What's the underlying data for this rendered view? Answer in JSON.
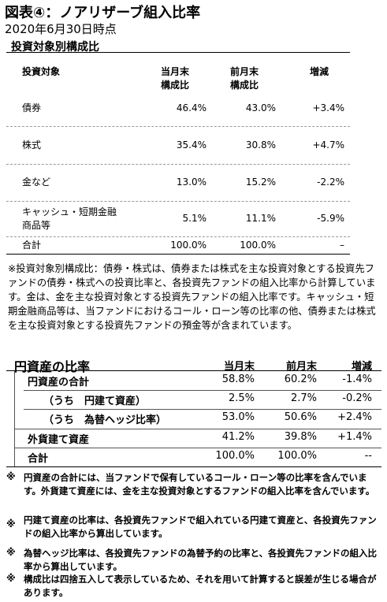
{
  "header": {
    "title": "図表④：ノアリザーブ組入比率",
    "subtitle": "2020年6月30日時点"
  },
  "table1": {
    "title": "投資対象別構成比",
    "headers": [
      [
        "投資対象"
      ],
      [
        "当月末",
        "構成比"
      ],
      [
        "前月末",
        "構成比"
      ],
      [
        "増減"
      ]
    ],
    "rows": [
      [
        [
          "債券"
        ],
        "46.4%",
        "43.0%",
        "+3.4%"
      ],
      [
        [
          "株式"
        ],
        "35.4%",
        "30.8%",
        "+4.7%"
      ],
      [
        [
          "金など"
        ],
        "13.0%",
        "15.2%",
        "-2.2%"
      ],
      [
        [
          "キャッシュ・短期金融",
          "商品等"
        ],
        "5.1%",
        "11.1%",
        "-5.9%"
      ],
      [
        [
          "合計"
        ],
        "100.0%",
        "100.0%",
        "–"
      ]
    ]
  },
  "note1": "※投資対象別構成比：債券・株式は、債券または株式を主な投資対象とする投資先ファンドの債券・株式への投資比率と、各投資先ファンドの組入比率から計算しています。金は、金を主な投資対象とする投資先ファンドの組入比率です。キャッシュ・短期金融商品等は、当ファンドにおけるコール・ローン等の比率の他、債券または株式を主な投資対象とする投資先ファンドの預金等が含まれています。",
  "table2": {
    "title": "円資産の比率",
    "headers": [
      "当月末",
      "前月末",
      "増減"
    ],
    "rows": [
      [
        "円資産の合計",
        "58.8%",
        "60.2%",
        "-1.4%"
      ],
      [
        "（うち　円建て資産）",
        "2.5%",
        "2.7%",
        "-0.2%"
      ],
      [
        "（うち　為替ヘッジ比率）",
        "53.0%",
        "50.6%",
        "+2.4%"
      ],
      [
        "外貨建て資産",
        "41.2%",
        "39.8%",
        "+1.4%"
      ],
      [
        "合計",
        "100.0%",
        "100.0%",
        "--"
      ]
    ]
  },
  "notes": [
    {
      "marker": "※",
      "text": "円資産の合計には、当ファンドで保有しているコール・ローン等の比率を含んでいます。外貨建て資産には、金を主な投資対象とするファンドの組入比率を含んでいます。"
    },
    {
      "marker": "※",
      "text": "円建て資産の比率は、各投資先ファンドで組入れている円建て資産と、各投資先ファンドの組入比率から算出しています。"
    },
    {
      "marker": "※",
      "text": "為替ヘッジ比率は、各投資先ファンドの為替予約の比率と、各投資先ファンドの組入比率から算出しています。"
    },
    {
      "marker": "※",
      "text": "構成比は四捨五入して表示しているため、それを用いて計算すると誤差が生じる場合があります。"
    }
  ]
}
